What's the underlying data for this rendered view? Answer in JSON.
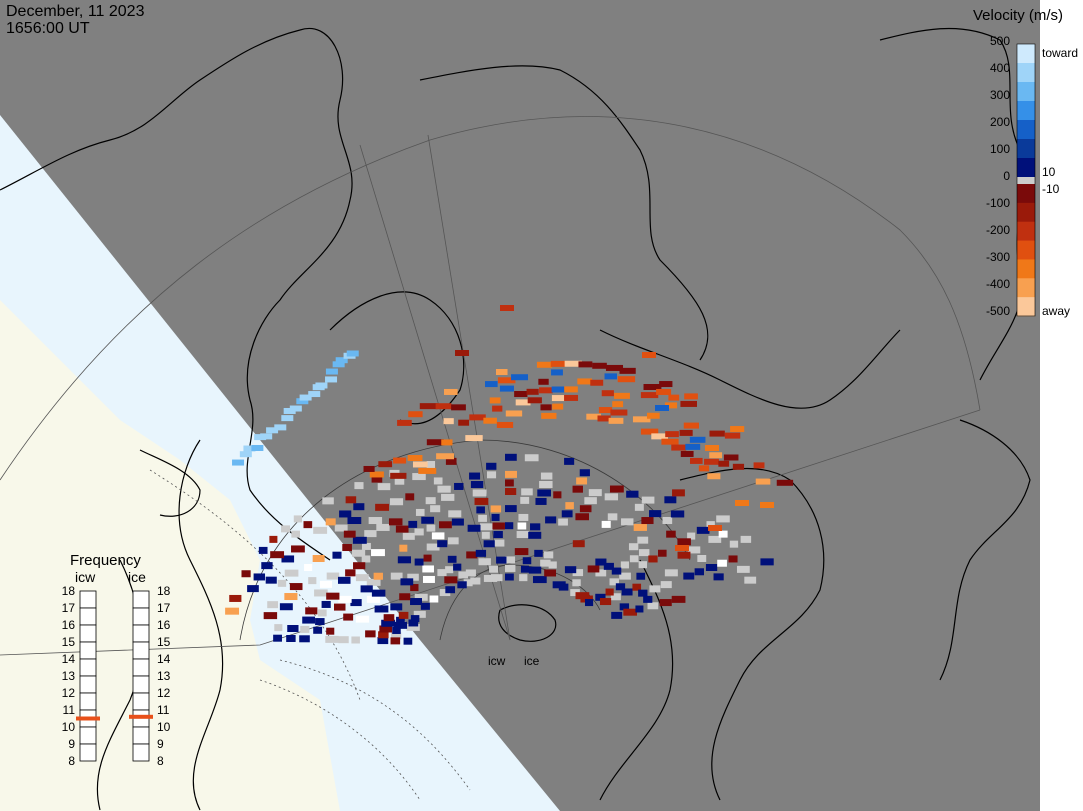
{
  "header": {
    "date": "December, 11 2023",
    "time": "1656:00 UT"
  },
  "velocity_scale": {
    "title": "Velocity (m/s)",
    "ticks": [
      "500",
      "400",
      "300",
      "200",
      "100",
      "0",
      "-100",
      "-200",
      "-300",
      "-400",
      "-500"
    ],
    "toward_label": "toward",
    "away_label": "away",
    "plus_label": "10",
    "minus_label": "-10",
    "toward_colors": [
      "#cfeafd",
      "#9fd4f8",
      "#6ab8f2",
      "#3590e8",
      "#1560c8",
      "#0a3a9a",
      "#00107a"
    ],
    "away_colors": [
      "#7a0a0a",
      "#9a1a0a",
      "#c03010",
      "#e05010",
      "#f07818",
      "#f8a050",
      "#fbc89a"
    ]
  },
  "frequency": {
    "title": "Frequency",
    "radars": [
      "icw",
      "ice"
    ],
    "ticks": [
      "18",
      "17",
      "16",
      "15",
      "14",
      "13",
      "12",
      "11",
      "10",
      "9",
      "8"
    ],
    "icw_value": 10.5,
    "ice_value": 10.6,
    "marker_color": "#e8501a"
  },
  "map": {
    "radar_labels": [
      "icw",
      "ice"
    ],
    "land_color": "#808080",
    "night_color": "#808080",
    "day_color": "#f8f8ea",
    "ocean_day_color": "#e8f5fd",
    "ground_scatter_color": "#cccccc"
  }
}
